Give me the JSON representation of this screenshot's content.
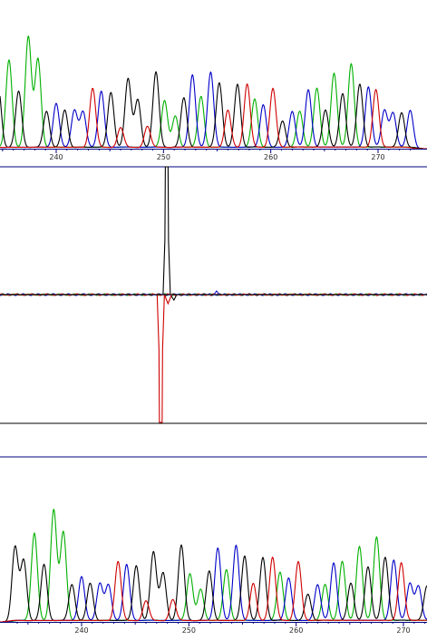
{
  "colors": {
    "A": "#00b000",
    "C": "#0000c8",
    "G": "#000000",
    "T": "#d00000",
    "axis": "#000080",
    "background": "#ffffff"
  },
  "chart_data": [
    {
      "type": "line",
      "name": "chromatogram-top",
      "x_ticks": [
        240,
        250,
        260,
        270
      ],
      "tick_labels": [
        "240",
        "250",
        "260",
        "270"
      ],
      "x_range": [
        233.5,
        273.2
      ],
      "grid": false,
      "bases": [
        {
          "pos": 233.8,
          "base": "G",
          "h": 0.55
        },
        {
          "pos": 234.6,
          "base": "G",
          "h": 0.45
        },
        {
          "pos": 235.6,
          "base": "A",
          "h": 0.65
        },
        {
          "pos": 236.5,
          "base": "G",
          "h": 0.42
        },
        {
          "pos": 237.4,
          "base": "A",
          "h": 0.82
        },
        {
          "pos": 238.3,
          "base": "A",
          "h": 0.66
        },
        {
          "pos": 239.1,
          "base": "G",
          "h": 0.27
        },
        {
          "pos": 240.0,
          "base": "C",
          "h": 0.33
        },
        {
          "pos": 240.8,
          "base": "G",
          "h": 0.28
        },
        {
          "pos": 241.7,
          "base": "C",
          "h": 0.28
        },
        {
          "pos": 242.5,
          "base": "C",
          "h": 0.27
        },
        {
          "pos": 243.4,
          "base": "T",
          "h": 0.44
        },
        {
          "pos": 244.2,
          "base": "C",
          "h": 0.42
        },
        {
          "pos": 245.1,
          "base": "G",
          "h": 0.41
        },
        {
          "pos": 246.0,
          "base": "T",
          "h": 0.15
        },
        {
          "pos": 246.7,
          "base": "G",
          "h": 0.51
        },
        {
          "pos": 247.6,
          "base": "G",
          "h": 0.36
        },
        {
          "pos": 248.5,
          "base": "T",
          "h": 0.16
        },
        {
          "pos": 249.3,
          "base": "G",
          "h": 0.56
        },
        {
          "pos": 250.1,
          "base": "A",
          "h": 0.35
        },
        {
          "pos": 251.1,
          "base": "A",
          "h": 0.24
        },
        {
          "pos": 251.9,
          "base": "G",
          "h": 0.37
        },
        {
          "pos": 252.7,
          "base": "C",
          "h": 0.54
        },
        {
          "pos": 253.5,
          "base": "A",
          "h": 0.38
        },
        {
          "pos": 254.4,
          "base": "C",
          "h": 0.56
        },
        {
          "pos": 255.2,
          "base": "G",
          "h": 0.48
        },
        {
          "pos": 256.0,
          "base": "T",
          "h": 0.28
        },
        {
          "pos": 256.9,
          "base": "G",
          "h": 0.47
        },
        {
          "pos": 257.8,
          "base": "T",
          "h": 0.47
        },
        {
          "pos": 258.5,
          "base": "A",
          "h": 0.36
        },
        {
          "pos": 259.3,
          "base": "C",
          "h": 0.32
        },
        {
          "pos": 260.2,
          "base": "T",
          "h": 0.44
        },
        {
          "pos": 261.1,
          "base": "G",
          "h": 0.2
        },
        {
          "pos": 262.0,
          "base": "C",
          "h": 0.27
        },
        {
          "pos": 262.7,
          "base": "A",
          "h": 0.27
        },
        {
          "pos": 263.5,
          "base": "C",
          "h": 0.43
        },
        {
          "pos": 264.3,
          "base": "A",
          "h": 0.44
        },
        {
          "pos": 265.1,
          "base": "G",
          "h": 0.28
        },
        {
          "pos": 265.9,
          "base": "A",
          "h": 0.55
        },
        {
          "pos": 266.7,
          "base": "G",
          "h": 0.4
        },
        {
          "pos": 267.5,
          "base": "A",
          "h": 0.62
        },
        {
          "pos": 268.3,
          "base": "G",
          "h": 0.47
        },
        {
          "pos": 269.1,
          "base": "C",
          "h": 0.45
        },
        {
          "pos": 269.8,
          "base": "T",
          "h": 0.43
        },
        {
          "pos": 270.6,
          "base": "C",
          "h": 0.28
        },
        {
          "pos": 271.4,
          "base": "C",
          "h": 0.26
        },
        {
          "pos": 272.2,
          "base": "G",
          "h": 0.26
        },
        {
          "pos": 273.0,
          "base": "C",
          "h": 0.28
        }
      ]
    },
    {
      "type": "line",
      "name": "difference-trace",
      "x_range": [
        233.5,
        273.2
      ],
      "description_of_marks": "flat baseline with one sharp positive black spike and one sharp negative red spike",
      "spike_up": {
        "pos": 250.3,
        "base": "G"
      },
      "spike_down": {
        "pos": 250.0,
        "base": "T"
      }
    },
    {
      "type": "line",
      "name": "chromatogram-bottom",
      "x_ticks": [
        240,
        250,
        260,
        270
      ],
      "tick_labels": [
        "240",
        "250",
        "260",
        "270"
      ],
      "x_range": [
        233.5,
        273.2
      ],
      "grid": false
    }
  ]
}
